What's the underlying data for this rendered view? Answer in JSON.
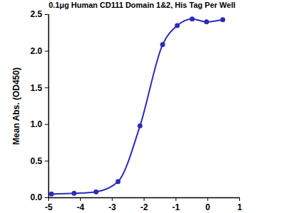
{
  "chart_data": {
    "type": "line",
    "title": "0.1μg Human CD111 Domain 1&2, His Tag Per Well",
    "y_label": "Mean Abs. (OD450)",
    "x": [
      -4.91,
      -4.2,
      -3.51,
      -2.82,
      -2.13,
      -1.42,
      -0.96,
      -0.49,
      -0.04,
      0.47
    ],
    "values": [
      0.05,
      0.06,
      0.08,
      0.22,
      0.98,
      2.09,
      2.35,
      2.44,
      2.4,
      2.43
    ],
    "color": "#2b2bbd",
    "marker": "circle",
    "line_style": "solid",
    "xlim": [
      -5,
      1
    ],
    "xticks": [
      -5,
      -4,
      -3,
      -2,
      -1,
      0,
      1
    ],
    "ylim": [
      0,
      2.5
    ],
    "yticks": [
      {
        "value": 0,
        "label": "0.0"
      },
      0.5,
      {
        "value": 1,
        "label": "1.0"
      },
      1.5,
      {
        "value": 2,
        "label": "2.0"
      },
      2.5
    ],
    "grid": false
  }
}
